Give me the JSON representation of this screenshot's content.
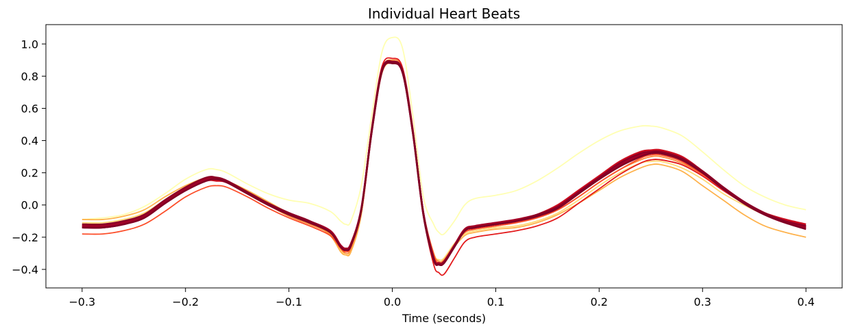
{
  "chart_data": {
    "type": "line",
    "title": "Individual Heart Beats",
    "xlabel": "Time (seconds)",
    "ylabel": "",
    "xlim": [
      -0.335,
      0.435
    ],
    "ylim": [
      -0.515,
      1.12
    ],
    "xticks": [
      -0.3,
      -0.2,
      -0.1,
      0.0,
      0.1,
      0.2,
      0.3,
      0.4
    ],
    "xtick_labels": [
      "−0.3",
      "−0.2",
      "−0.1",
      "0.0",
      "0.1",
      "0.2",
      "0.3",
      "0.4"
    ],
    "yticks": [
      -0.4,
      -0.2,
      0.0,
      0.2,
      0.4,
      0.6,
      0.8,
      1.0
    ],
    "ytick_labels": [
      "−0.4",
      "−0.2",
      "0.0",
      "0.2",
      "0.4",
      "0.6",
      "0.8",
      "1.0"
    ],
    "grid": false,
    "legend": "none",
    "colormap": "YlOrRd",
    "x": [
      -0.3,
      -0.28,
      -0.26,
      -0.24,
      -0.22,
      -0.2,
      -0.18,
      -0.17,
      -0.16,
      -0.14,
      -0.12,
      -0.1,
      -0.08,
      -0.06,
      -0.05,
      -0.045,
      -0.04,
      -0.03,
      -0.02,
      -0.01,
      0.0,
      0.01,
      0.02,
      0.03,
      0.04,
      0.045,
      0.05,
      0.06,
      0.07,
      0.08,
      0.1,
      0.12,
      0.14,
      0.16,
      0.18,
      0.2,
      0.22,
      0.24,
      0.25,
      0.26,
      0.28,
      0.3,
      0.32,
      0.34,
      0.36,
      0.38,
      0.4
    ],
    "series": [
      {
        "color": "#ffffb2",
        "values": [
          -0.09,
          -0.08,
          -0.06,
          -0.01,
          0.07,
          0.16,
          0.22,
          0.22,
          0.2,
          0.13,
          0.07,
          0.03,
          0.01,
          -0.04,
          -0.1,
          -0.12,
          -0.1,
          0.12,
          0.55,
          0.95,
          1.04,
          0.97,
          0.55,
          0.05,
          -0.12,
          -0.17,
          -0.18,
          -0.1,
          -0.0,
          0.04,
          0.06,
          0.09,
          0.15,
          0.23,
          0.32,
          0.4,
          0.46,
          0.49,
          0.49,
          0.48,
          0.43,
          0.33,
          0.22,
          0.12,
          0.05,
          0.0,
          -0.03
        ]
      },
      {
        "color": "#fed976",
        "values": [
          -0.11,
          -0.11,
          -0.09,
          -0.05,
          0.03,
          0.11,
          0.17,
          0.17,
          0.15,
          0.08,
          0.01,
          -0.06,
          -0.11,
          -0.18,
          -0.28,
          -0.31,
          -0.28,
          -0.05,
          0.45,
          0.82,
          0.88,
          0.82,
          0.45,
          -0.05,
          -0.3,
          -0.34,
          -0.33,
          -0.24,
          -0.18,
          -0.16,
          -0.14,
          -0.13,
          -0.1,
          -0.05,
          0.03,
          0.12,
          0.2,
          0.26,
          0.27,
          0.27,
          0.23,
          0.16,
          0.07,
          -0.0,
          -0.06,
          -0.1,
          -0.13
        ]
      },
      {
        "color": "#feb24c",
        "values": [
          -0.09,
          -0.09,
          -0.07,
          -0.03,
          0.05,
          0.12,
          0.17,
          0.17,
          0.15,
          0.09,
          0.02,
          -0.05,
          -0.1,
          -0.19,
          -0.29,
          -0.31,
          -0.29,
          -0.06,
          0.44,
          0.82,
          0.88,
          0.82,
          0.44,
          -0.06,
          -0.32,
          -0.36,
          -0.35,
          -0.26,
          -0.19,
          -0.17,
          -0.15,
          -0.14,
          -0.11,
          -0.06,
          0.01,
          0.09,
          0.17,
          0.23,
          0.25,
          0.25,
          0.21,
          0.12,
          0.03,
          -0.06,
          -0.13,
          -0.17,
          -0.2
        ]
      },
      {
        "color": "#fd8d3c",
        "values": [
          -0.13,
          -0.13,
          -0.11,
          -0.07,
          0.02,
          0.1,
          0.16,
          0.16,
          0.14,
          0.07,
          -0.0,
          -0.07,
          -0.12,
          -0.18,
          -0.27,
          -0.3,
          -0.27,
          -0.04,
          0.46,
          0.84,
          0.9,
          0.84,
          0.46,
          -0.04,
          -0.3,
          -0.35,
          -0.34,
          -0.25,
          -0.17,
          -0.15,
          -0.13,
          -0.11,
          -0.08,
          -0.03,
          0.05,
          0.14,
          0.22,
          0.28,
          0.3,
          0.3,
          0.26,
          0.19,
          0.1,
          0.02,
          -0.05,
          -0.1,
          -0.13
        ]
      },
      {
        "color": "#fc4e2a",
        "values": [
          -0.18,
          -0.18,
          -0.16,
          -0.12,
          -0.04,
          0.05,
          0.11,
          0.12,
          0.11,
          0.05,
          -0.02,
          -0.08,
          -0.13,
          -0.19,
          -0.27,
          -0.29,
          -0.26,
          -0.04,
          0.45,
          0.83,
          0.89,
          0.83,
          0.45,
          -0.04,
          -0.31,
          -0.36,
          -0.35,
          -0.25,
          -0.17,
          -0.15,
          -0.13,
          -0.11,
          -0.08,
          -0.03,
          0.05,
          0.14,
          0.22,
          0.29,
          0.31,
          0.31,
          0.27,
          0.19,
          0.1,
          0.02,
          -0.05,
          -0.1,
          -0.14
        ]
      },
      {
        "color": "#e31a1c",
        "values": [
          -0.12,
          -0.12,
          -0.1,
          -0.06,
          0.03,
          0.11,
          0.16,
          0.16,
          0.14,
          0.08,
          0.01,
          -0.05,
          -0.1,
          -0.16,
          -0.25,
          -0.27,
          -0.24,
          -0.02,
          0.48,
          0.86,
          0.91,
          0.85,
          0.47,
          -0.06,
          -0.37,
          -0.42,
          -0.43,
          -0.33,
          -0.23,
          -0.2,
          -0.18,
          -0.16,
          -0.13,
          -0.08,
          0.01,
          0.1,
          0.19,
          0.26,
          0.28,
          0.28,
          0.25,
          0.18,
          0.09,
          0.01,
          -0.06,
          -0.11,
          -0.15
        ]
      },
      {
        "color": "#cc0e20",
        "values": [
          -0.14,
          -0.14,
          -0.12,
          -0.08,
          0.01,
          0.09,
          0.15,
          0.15,
          0.14,
          0.07,
          0.0,
          -0.06,
          -0.11,
          -0.17,
          -0.26,
          -0.28,
          -0.25,
          -0.03,
          0.46,
          0.84,
          0.89,
          0.83,
          0.45,
          -0.05,
          -0.33,
          -0.37,
          -0.36,
          -0.26,
          -0.16,
          -0.14,
          -0.12,
          -0.1,
          -0.06,
          -0.0,
          0.09,
          0.18,
          0.27,
          0.33,
          0.34,
          0.34,
          0.3,
          0.21,
          0.11,
          0.02,
          -0.05,
          -0.09,
          -0.12
        ]
      },
      {
        "color": "#b40426",
        "values": [
          -0.13,
          -0.13,
          -0.11,
          -0.07,
          0.02,
          0.1,
          0.16,
          0.16,
          0.14,
          0.08,
          0.01,
          -0.05,
          -0.1,
          -0.17,
          -0.25,
          -0.27,
          -0.24,
          -0.03,
          0.46,
          0.83,
          0.88,
          0.82,
          0.45,
          -0.05,
          -0.33,
          -0.37,
          -0.36,
          -0.26,
          -0.16,
          -0.14,
          -0.12,
          -0.1,
          -0.07,
          -0.02,
          0.07,
          0.16,
          0.24,
          0.31,
          0.32,
          0.32,
          0.28,
          0.2,
          0.1,
          0.01,
          -0.06,
          -0.11,
          -0.14
        ]
      },
      {
        "color": "#a50026",
        "values": [
          -0.14,
          -0.14,
          -0.12,
          -0.08,
          0.01,
          0.09,
          0.15,
          0.16,
          0.14,
          0.07,
          0.0,
          -0.06,
          -0.11,
          -0.17,
          -0.26,
          -0.28,
          -0.25,
          -0.03,
          0.45,
          0.83,
          0.88,
          0.82,
          0.44,
          -0.06,
          -0.34,
          -0.37,
          -0.36,
          -0.26,
          -0.16,
          -0.14,
          -0.12,
          -0.1,
          -0.07,
          -0.02,
          0.07,
          0.16,
          0.24,
          0.3,
          0.32,
          0.32,
          0.28,
          0.2,
          0.1,
          0.01,
          -0.06,
          -0.11,
          -0.14
        ]
      },
      {
        "color": "#a50026",
        "values": [
          -0.13,
          -0.13,
          -0.11,
          -0.07,
          0.02,
          0.1,
          0.16,
          0.17,
          0.15,
          0.08,
          0.01,
          -0.05,
          -0.1,
          -0.16,
          -0.25,
          -0.27,
          -0.24,
          -0.02,
          0.46,
          0.84,
          0.89,
          0.83,
          0.45,
          -0.05,
          -0.33,
          -0.36,
          -0.35,
          -0.25,
          -0.15,
          -0.13,
          -0.11,
          -0.09,
          -0.06,
          -0.01,
          0.08,
          0.17,
          0.25,
          0.31,
          0.33,
          0.33,
          0.29,
          0.21,
          0.11,
          0.02,
          -0.05,
          -0.1,
          -0.13
        ]
      },
      {
        "color": "#8b0026",
        "values": [
          -0.12,
          -0.12,
          -0.1,
          -0.06,
          0.03,
          0.11,
          0.17,
          0.17,
          0.15,
          0.08,
          0.01,
          -0.05,
          -0.1,
          -0.17,
          -0.26,
          -0.28,
          -0.25,
          -0.03,
          0.46,
          0.84,
          0.89,
          0.83,
          0.45,
          -0.05,
          -0.33,
          -0.37,
          -0.36,
          -0.26,
          -0.16,
          -0.14,
          -0.12,
          -0.1,
          -0.06,
          -0.01,
          0.08,
          0.17,
          0.26,
          0.32,
          0.33,
          0.33,
          0.29,
          0.21,
          0.11,
          0.02,
          -0.05,
          -0.1,
          -0.13
        ]
      },
      {
        "color": "#800026",
        "values": [
          -0.14,
          -0.14,
          -0.12,
          -0.08,
          0.01,
          0.09,
          0.15,
          0.16,
          0.14,
          0.07,
          0.0,
          -0.06,
          -0.11,
          -0.17,
          -0.26,
          -0.28,
          -0.25,
          -0.03,
          0.45,
          0.83,
          0.88,
          0.82,
          0.44,
          -0.06,
          -0.34,
          -0.37,
          -0.36,
          -0.26,
          -0.16,
          -0.14,
          -0.12,
          -0.1,
          -0.07,
          -0.02,
          0.07,
          0.16,
          0.24,
          0.3,
          0.32,
          0.32,
          0.28,
          0.2,
          0.1,
          0.01,
          -0.06,
          -0.11,
          -0.15
        ]
      }
    ]
  }
}
